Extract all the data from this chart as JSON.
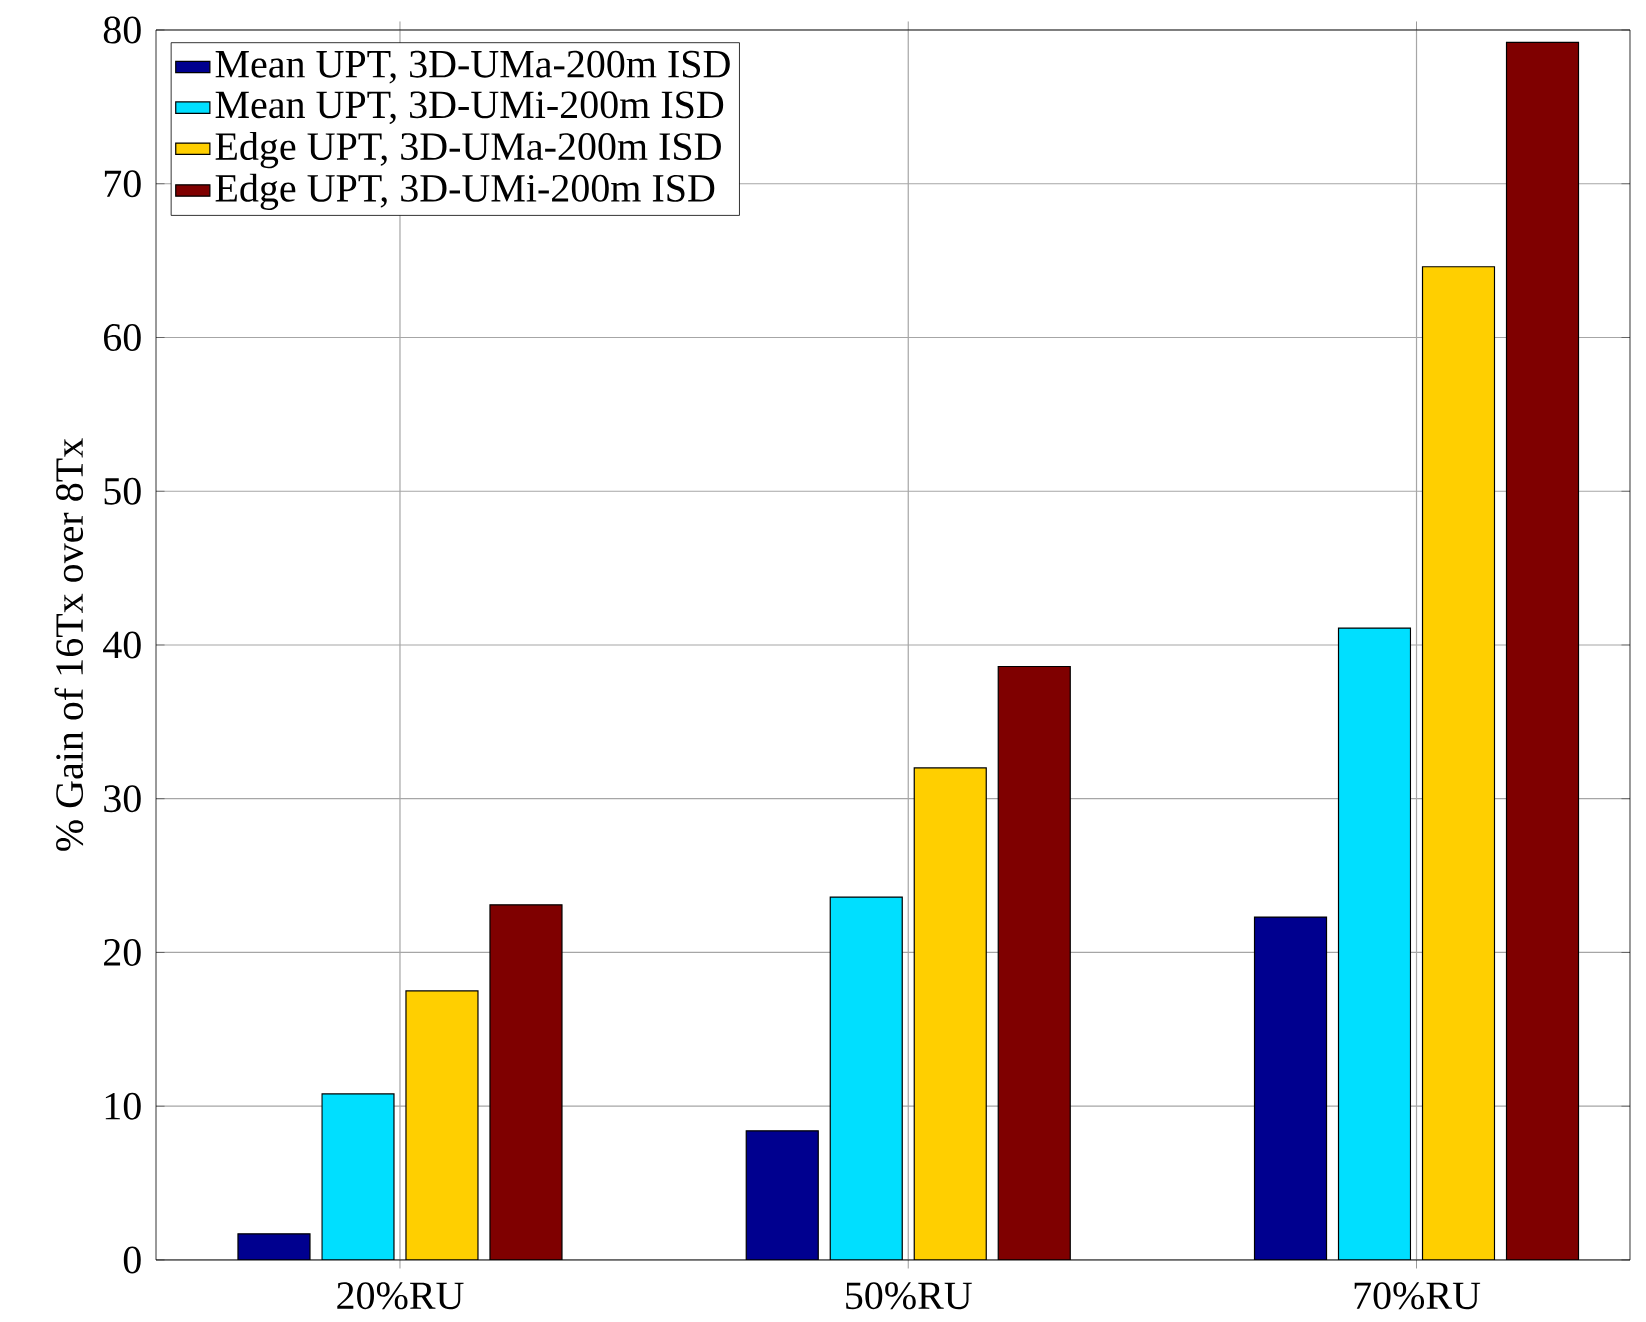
{
  "chart_data": {
    "type": "bar",
    "ylabel": "% Gain of 16Tx over 8Tx",
    "categories": [
      "20%RU",
      "50%RU",
      "70%RU"
    ],
    "series": [
      {
        "name": "Mean UPT, 3D-UMa-200m ISD",
        "color": "#00008f",
        "values": [
          1.7,
          8.4,
          22.3
        ]
      },
      {
        "name": "Mean UPT, 3D-UMi-200m ISD",
        "color": "#00dfff",
        "values": [
          10.8,
          23.6,
          41.1
        ]
      },
      {
        "name": "Edge UPT, 3D-UMa-200m ISD",
        "color": "#ffcf00",
        "values": [
          17.5,
          32.0,
          64.6
        ]
      },
      {
        "name": "Edge UPT, 3D-UMi-200m ISD",
        "color": "#7f0000",
        "values": [
          23.1,
          38.6,
          79.2
        ]
      }
    ],
    "ylim": [
      0,
      80
    ],
    "yticks": [
      0,
      10,
      20,
      30,
      40,
      50,
      60,
      70,
      80
    ],
    "grid": true,
    "legend": "top left"
  }
}
